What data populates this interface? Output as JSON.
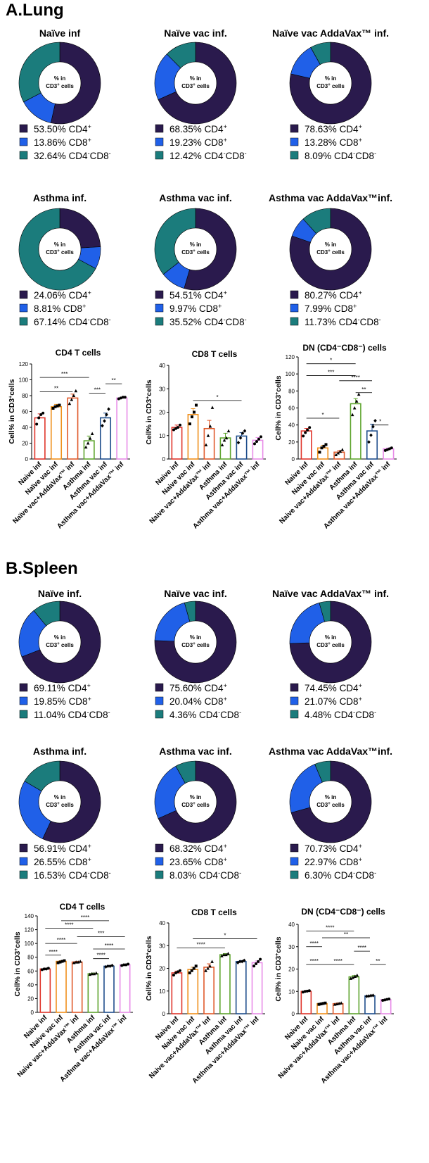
{
  "figure": {
    "sections": [
      {
        "label": "A.Lung"
      },
      {
        "label": "B.Spleen"
      }
    ],
    "donut_center": {
      "line1": "% in",
      "line2": "CD3",
      "sup": "+",
      "line2_suffix": " cells"
    },
    "legend_series": [
      {
        "name": "CD4",
        "sup": "+",
        "color": "#2a1a4d"
      },
      {
        "name": "CD8",
        "sup": "+",
        "color": "#2060e8"
      },
      {
        "name": "CD4",
        "sup": "-",
        "name2": "CD8",
        "sup2": "-",
        "color": "#1b7c7c"
      }
    ],
    "colors": {
      "cd4": "#2a1a4d",
      "cd8": "#2060e8",
      "dn": "#1b7c7c",
      "bar_colors": [
        "#e0352b",
        "#f0901c",
        "#e05a2b",
        "#5fa52f",
        "#1f4e8c",
        "#e88ce8"
      ]
    }
  },
  "chart_data": [
    {
      "type": "pie",
      "section": "A.Lung",
      "title": "Naïve inf",
      "labels": [
        "53.50%",
        "13.86%",
        "32.64%"
      ],
      "values": [
        53.5,
        13.86,
        32.64
      ]
    },
    {
      "type": "pie",
      "section": "A.Lung",
      "title": "Naïve vac inf.",
      "labels": [
        "68.35%",
        "19.23%",
        "12.42%"
      ],
      "values": [
        68.35,
        19.23,
        12.42
      ]
    },
    {
      "type": "pie",
      "section": "A.Lung",
      "title": "Naïve  vac AddaVax™ inf.",
      "labels": [
        "78.63%",
        "13.28%",
        "8.09%"
      ],
      "values": [
        78.63,
        13.28,
        8.09
      ]
    },
    {
      "type": "pie",
      "section": "A.Lung",
      "title": "Asthma inf.",
      "labels": [
        "24.06%",
        "8.81%",
        "67.14%"
      ],
      "values": [
        24.06,
        8.81,
        67.14
      ]
    },
    {
      "type": "pie",
      "section": "A.Lung",
      "title": "Asthma vac inf.",
      "labels": [
        "54.51%",
        "9.97%",
        "35.52%"
      ],
      "values": [
        54.51,
        9.97,
        35.52
      ]
    },
    {
      "type": "pie",
      "section": "A.Lung",
      "title": "Asthma vac AddaVax™inf.",
      "labels": [
        "80.27%",
        "7.99%",
        "11.73%"
      ],
      "values": [
        80.27,
        7.99,
        11.73
      ]
    },
    {
      "type": "bar",
      "section": "A.Lung",
      "title": "CD4 T cells",
      "ylabel": "Cell% in CD3",
      "ylabel_sup": "+",
      "ylabel_suffix": "cells",
      "categories": [
        "Naive inf",
        "Naïve vac inf",
        "Naïve vac+AddaVax™ inf",
        "Asthma inf",
        "Asthma vac inf",
        "Asthma vac+AddaVax™ inf"
      ],
      "values": [
        52,
        66,
        77,
        23,
        52,
        77
      ],
      "errors": [
        5,
        3,
        5,
        6,
        6,
        1
      ],
      "points": [
        [
          44,
          52,
          56,
          58
        ],
        [
          64,
          66,
          67,
          68
        ],
        [
          70,
          75,
          80,
          86
        ],
        [
          15,
          20,
          26,
          32
        ],
        [
          42,
          48,
          56,
          63
        ],
        [
          76,
          77,
          78,
          78
        ]
      ],
      "ylim": [
        0,
        120
      ],
      "yticks": [
        "0",
        "20",
        "40",
        "60",
        "80",
        "100",
        "120"
      ],
      "sig": [
        {
          "from": 0,
          "to": 3,
          "y": 103,
          "label": "***"
        },
        {
          "from": 0,
          "to": 2,
          "y": 85,
          "label": "**"
        },
        {
          "from": 3,
          "to": 4,
          "y": 83,
          "label": "***"
        },
        {
          "from": 4,
          "to": 5,
          "y": 95,
          "label": "**"
        }
      ]
    },
    {
      "type": "bar",
      "section": "A.Lung",
      "title": "CD8 T cells",
      "ylabel": "Cell% in CD3",
      "ylabel_sup": "+",
      "ylabel_suffix": "cells",
      "categories": [
        "Naive inf",
        "Naive vac inf",
        "Naive vac+AddaVax™ inf",
        "Asthma inf",
        "Asthma vac inf",
        "Asthma vac+AddaVax™ inf"
      ],
      "values": [
        13.5,
        19,
        13,
        9,
        9.8,
        8
      ],
      "errors": [
        1,
        2.5,
        3.5,
        2,
        1.5,
        1.2
      ],
      "points": [
        [
          12.5,
          13,
          13.5,
          14.5
        ],
        [
          15,
          18,
          20,
          23
        ],
        [
          6,
          10,
          14,
          22
        ],
        [
          6,
          8,
          9,
          12
        ],
        [
          7,
          9,
          11,
          12
        ],
        [
          6.5,
          7.5,
          8.5,
          9.5
        ]
      ],
      "ylim": [
        0,
        40
      ],
      "yticks": [
        "0",
        "10",
        "20",
        "30",
        "40"
      ],
      "sig": [
        {
          "from": 1,
          "to": 4,
          "y": 25,
          "label": "*"
        }
      ]
    },
    {
      "type": "bar",
      "section": "A.Lung",
      "title": "DN (CD4⁻CD8⁻) cells",
      "ylabel": "Cell% in CD3",
      "ylabel_sup": "+",
      "ylabel_suffix": "cells",
      "categories": [
        "Naive inf",
        "Naive vac inf",
        "Naive vac+AddaVax™ inf",
        "Asthma inf",
        "Asthma vac inf",
        "Asthma vac+AddaVax™ inf"
      ],
      "values": [
        33,
        13,
        8,
        65,
        33,
        12
      ],
      "errors": [
        3,
        3,
        2,
        6,
        8,
        1
      ],
      "points": [
        [
          27,
          31,
          34,
          37
        ],
        [
          8,
          13,
          15,
          17
        ],
        [
          5,
          7,
          9,
          11
        ],
        [
          52,
          60,
          68,
          76
        ],
        [
          20,
          28,
          38,
          45
        ],
        [
          10,
          11,
          12,
          13
        ]
      ],
      "ylim": [
        0,
        120
      ],
      "yticks": [
        "0",
        "20",
        "40",
        "60",
        "80",
        "100",
        "120"
      ],
      "sig": [
        {
          "from": 0,
          "to": 3,
          "y": 112,
          "label": "*"
        },
        {
          "from": 0,
          "to": 3,
          "y": 98,
          "label": "***"
        },
        {
          "from": 2,
          "to": 4,
          "y": 92,
          "label": "****"
        },
        {
          "from": 3,
          "to": 4,
          "y": 78,
          "label": "**"
        },
        {
          "from": 0,
          "to": 2,
          "y": 48,
          "label": "*"
        },
        {
          "from": 4,
          "to": 5,
          "y": 40,
          "label": "*"
        }
      ]
    },
    {
      "type": "pie",
      "section": "B.Spleen",
      "title": "Naïve inf.",
      "labels": [
        "69.11%",
        "19.85%",
        "11.04%"
      ],
      "values": [
        69.11,
        19.85,
        11.04
      ]
    },
    {
      "type": "pie",
      "section": "B.Spleen",
      "title": "Naïve vac inf.",
      "labels": [
        "75.60%",
        "20.04%",
        "4.36%"
      ],
      "values": [
        75.6,
        20.04,
        4.36
      ]
    },
    {
      "type": "pie",
      "section": "B.Spleen",
      "title": "Naïve vac AddaVax™ inf.",
      "labels": [
        "74.45%",
        "21.07%",
        "4.48%"
      ],
      "values": [
        74.45,
        21.07,
        4.48
      ]
    },
    {
      "type": "pie",
      "section": "B.Spleen",
      "title": "Asthma inf.",
      "labels": [
        "56.91%",
        "26.55%",
        "16.53%"
      ],
      "values": [
        56.91,
        26.55,
        16.53
      ]
    },
    {
      "type": "pie",
      "section": "B.Spleen",
      "title": "Asthma vac inf.",
      "labels": [
        "68.32%",
        "23.65%",
        "8.03%"
      ],
      "values": [
        68.32,
        23.65,
        8.03
      ]
    },
    {
      "type": "pie",
      "section": "B.Spleen",
      "title": "Asthma vac AddaVax™inf.",
      "labels": [
        "70.73%",
        "22.97%",
        "6.30%"
      ],
      "values": [
        70.73,
        22.97,
        6.3
      ]
    },
    {
      "type": "bar",
      "section": "B.Spleen",
      "title": "CD4 T cells",
      "ylabel": "Cell% in CD3",
      "ylabel_sup": "+",
      "ylabel_suffix": "cells",
      "categories": [
        "Naive inf",
        "Naive vac inf",
        "Naive vac+AddaVax™ inf",
        "Asthma inf",
        "Asthma vac inf",
        "Asthma vac+AddaVax™ inf"
      ],
      "values": [
        63,
        74,
        73,
        56,
        67,
        69
      ],
      "errors": [
        1,
        1,
        1,
        1,
        1,
        1
      ],
      "points": [
        [
          62,
          63,
          63,
          64
        ],
        [
          72,
          73,
          74,
          75
        ],
        [
          72,
          73,
          73,
          74
        ],
        [
          55,
          56,
          56,
          57
        ],
        [
          66,
          67,
          67,
          68
        ],
        [
          68,
          69,
          69,
          70
        ]
      ],
      "ylim": [
        0,
        140
      ],
      "yticks": [
        "0",
        "20",
        "40",
        "60",
        "80",
        "100",
        "120",
        "140"
      ],
      "sig": [
        {
          "from": 1,
          "to": 4,
          "y": 133,
          "label": "****"
        },
        {
          "from": 0,
          "to": 3,
          "y": 122,
          "label": "****"
        },
        {
          "from": 2,
          "to": 5,
          "y": 110,
          "label": "***"
        },
        {
          "from": 0,
          "to": 2,
          "y": 100,
          "label": "****"
        },
        {
          "from": 3,
          "to": 5,
          "y": 92,
          "label": "****"
        },
        {
          "from": 0,
          "to": 1,
          "y": 83,
          "label": "****"
        },
        {
          "from": 3,
          "to": 4,
          "y": 78,
          "label": "****"
        }
      ]
    },
    {
      "type": "bar",
      "section": "B.Spleen",
      "title": "CD8 T cells",
      "ylabel": "Cell% in CD3",
      "ylabel_sup": "+",
      "ylabel_suffix": "cells",
      "categories": [
        "Naive inf",
        "Naive vac inf",
        "Naive vac+AddaVax™ inf",
        "Asthma inf",
        "Asthma vac inf",
        "Asthma vac+AddaVax™ inf"
      ],
      "values": [
        18,
        19.5,
        20.5,
        26,
        23,
        22.5
      ],
      "errors": [
        0.8,
        1,
        1.5,
        0.5,
        0.4,
        0.8
      ],
      "points": [
        [
          17,
          18,
          18.5,
          19
        ],
        [
          18,
          19,
          20,
          21
        ],
        [
          19,
          20,
          21,
          23
        ],
        [
          25.5,
          26,
          26,
          26.5
        ],
        [
          22.5,
          23,
          23,
          23.5
        ],
        [
          21,
          22,
          23,
          24
        ]
      ],
      "ylim": [
        0,
        40
      ],
      "yticks": [
        "0",
        "10",
        "20",
        "30",
        "40"
      ],
      "sig": [
        {
          "from": 1,
          "to": 5,
          "y": 33,
          "label": "*"
        },
        {
          "from": 0,
          "to": 3,
          "y": 29,
          "label": "****"
        }
      ]
    },
    {
      "type": "bar",
      "section": "B.Spleen",
      "title": "DN (CD4⁻CD8⁻) cells",
      "ylabel": "Cell% in CD3",
      "ylabel_sup": "+",
      "ylabel_suffix": "cells",
      "categories": [
        "Naive inf",
        "Naive vac inf",
        "Naive vac+AddaVax™ inf",
        "Asthma inf",
        "Asthma vac inf",
        "Asthma vac+AddaVax™ inf"
      ],
      "values": [
        10,
        4.5,
        4.5,
        16.5,
        8,
        6.3
      ],
      "errors": [
        0.3,
        0.3,
        0.3,
        0.6,
        0.2,
        0.3
      ],
      "points": [
        [
          9.7,
          10,
          10.1,
          10.3
        ],
        [
          4.2,
          4.4,
          4.6,
          4.8
        ],
        [
          4.2,
          4.4,
          4.6,
          4.8
        ],
        [
          15.8,
          16.2,
          16.7,
          17.2
        ],
        [
          7.8,
          7.9,
          8.1,
          8.2
        ],
        [
          6,
          6.2,
          6.4,
          6.6
        ]
      ],
      "ylim": [
        0,
        40
      ],
      "yticks": [
        "0",
        "10",
        "20",
        "30",
        "40"
      ],
      "sig": [
        {
          "from": 0,
          "to": 3,
          "y": 37,
          "label": "****"
        },
        {
          "from": 1,
          "to": 4,
          "y": 34,
          "label": "**"
        },
        {
          "from": 0,
          "to": 1,
          "y": 30,
          "label": "****"
        },
        {
          "from": 3,
          "to": 4,
          "y": 28,
          "label": "****"
        },
        {
          "from": 0,
          "to": 1,
          "y": 22,
          "label": "****"
        },
        {
          "from": 1,
          "to": 3,
          "y": 22,
          "label": "****"
        },
        {
          "from": 4,
          "to": 5,
          "y": 22,
          "label": "**"
        }
      ]
    }
  ]
}
